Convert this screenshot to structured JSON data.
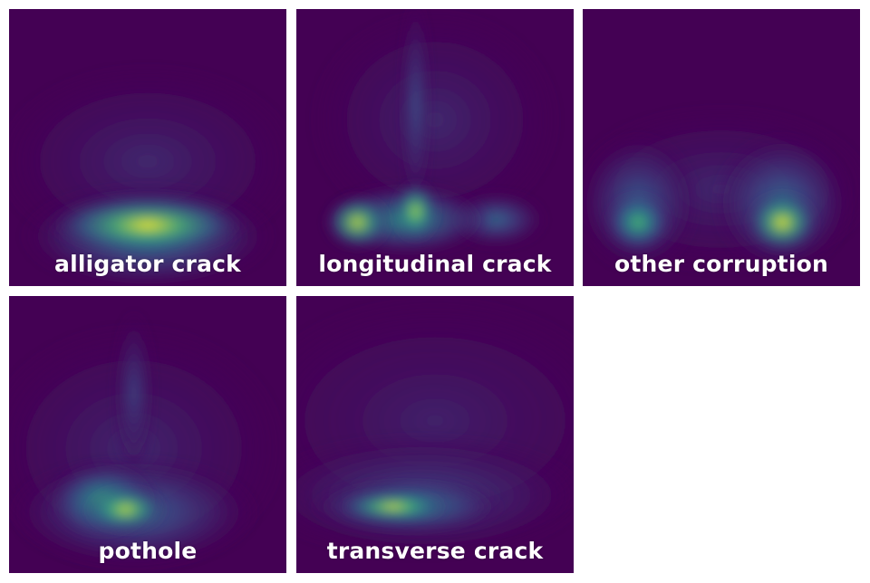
{
  "chart_data": [
    {
      "type": "heatmap",
      "title": "alligator crack",
      "colormap": "viridis",
      "hotspots": [
        {
          "cx": 0.5,
          "cy": 0.78,
          "rx": 0.36,
          "ry": 0.11,
          "intensity": 1.0
        },
        {
          "cx": 0.5,
          "cy": 0.82,
          "rx": 0.46,
          "ry": 0.19,
          "intensity": 0.45
        },
        {
          "cx": 0.5,
          "cy": 0.55,
          "rx": 0.55,
          "ry": 0.35,
          "intensity": 0.12
        }
      ]
    },
    {
      "type": "heatmap",
      "title": "longitudinal crack",
      "colormap": "viridis",
      "hotspots": [
        {
          "cx": 0.22,
          "cy": 0.77,
          "rx": 0.12,
          "ry": 0.1,
          "intensity": 0.95
        },
        {
          "cx": 0.43,
          "cy": 0.73,
          "rx": 0.08,
          "ry": 0.11,
          "intensity": 0.9
        },
        {
          "cx": 0.4,
          "cy": 0.76,
          "rx": 0.3,
          "ry": 0.13,
          "intensity": 0.55
        },
        {
          "cx": 0.72,
          "cy": 0.76,
          "rx": 0.18,
          "ry": 0.1,
          "intensity": 0.35
        },
        {
          "cx": 0.43,
          "cy": 0.35,
          "rx": 0.05,
          "ry": 0.4,
          "intensity": 0.25
        },
        {
          "cx": 0.5,
          "cy": 0.4,
          "rx": 0.45,
          "ry": 0.4,
          "intensity": 0.12
        }
      ]
    },
    {
      "type": "heatmap",
      "title": "other corruption",
      "colormap": "viridis",
      "hotspots": [
        {
          "cx": 0.2,
          "cy": 0.77,
          "rx": 0.12,
          "ry": 0.11,
          "intensity": 0.7
        },
        {
          "cx": 0.72,
          "cy": 0.77,
          "rx": 0.13,
          "ry": 0.11,
          "intensity": 1.0
        },
        {
          "cx": 0.72,
          "cy": 0.7,
          "rx": 0.25,
          "ry": 0.25,
          "intensity": 0.35
        },
        {
          "cx": 0.2,
          "cy": 0.7,
          "rx": 0.22,
          "ry": 0.25,
          "intensity": 0.3
        },
        {
          "cx": 0.5,
          "cy": 0.65,
          "rx": 0.55,
          "ry": 0.3,
          "intensity": 0.12
        }
      ]
    },
    {
      "type": "heatmap",
      "title": "pothole",
      "colormap": "viridis",
      "hotspots": [
        {
          "cx": 0.42,
          "cy": 0.77,
          "rx": 0.15,
          "ry": 0.08,
          "intensity": 0.95
        },
        {
          "cx": 0.34,
          "cy": 0.74,
          "rx": 0.2,
          "ry": 0.14,
          "intensity": 0.6
        },
        {
          "cx": 0.45,
          "cy": 0.78,
          "rx": 0.45,
          "ry": 0.2,
          "intensity": 0.35
        },
        {
          "cx": 0.45,
          "cy": 0.35,
          "rx": 0.07,
          "ry": 0.3,
          "intensity": 0.2
        },
        {
          "cx": 0.45,
          "cy": 0.55,
          "rx": 0.55,
          "ry": 0.45,
          "intensity": 0.12
        }
      ]
    },
    {
      "type": "heatmap",
      "title": "transverse crack",
      "colormap": "viridis",
      "hotspots": [
        {
          "cx": 0.35,
          "cy": 0.76,
          "rx": 0.2,
          "ry": 0.05,
          "intensity": 1.0
        },
        {
          "cx": 0.4,
          "cy": 0.76,
          "rx": 0.35,
          "ry": 0.1,
          "intensity": 0.5
        },
        {
          "cx": 0.45,
          "cy": 0.72,
          "rx": 0.6,
          "ry": 0.22,
          "intensity": 0.22
        },
        {
          "cx": 0.5,
          "cy": 0.45,
          "rx": 0.7,
          "ry": 0.45,
          "intensity": 0.1
        }
      ]
    }
  ]
}
